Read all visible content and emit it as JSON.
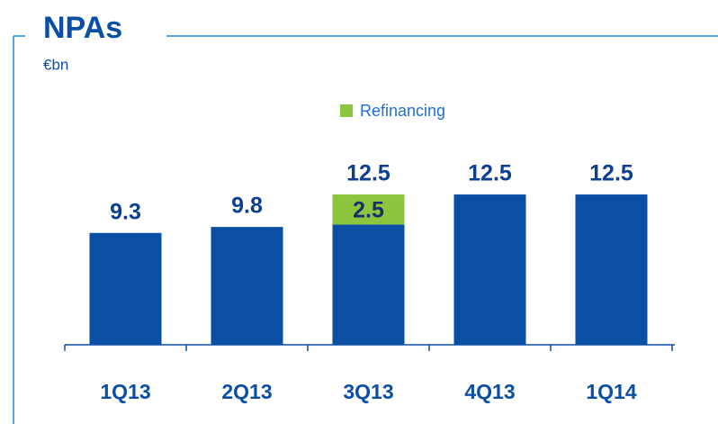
{
  "chart_data": {
    "type": "stacked_bar",
    "title": "NPAs",
    "subtitle": "€bn",
    "categories": [
      "1Q13",
      "2Q13",
      "3Q13",
      "4Q13",
      "1Q14"
    ],
    "series": [
      {
        "color": "#0a4fa3",
        "values": [
          9.3,
          9.8,
          10,
          12.5,
          12.5
        ]
      },
      {
        "name": "Refinancing",
        "color": "#8cc63f",
        "values": [
          null,
          null,
          2.5,
          null,
          null
        ]
      }
    ],
    "totals": [
      9.3,
      9.8,
      12.5,
      12.5,
      12.5
    ],
    "ylim": [
      0,
      14
    ],
    "legend": "top"
  }
}
